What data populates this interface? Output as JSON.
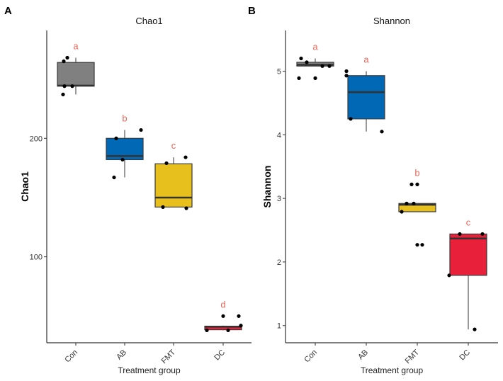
{
  "chart_data": [
    {
      "panel_tag": "A",
      "type": "box",
      "title": "Chao1",
      "xlabel": "Treatment group",
      "ylabel": "Chao1",
      "ylim": [
        27.5,
        291
      ],
      "yticks": [
        100,
        200
      ],
      "grid": false,
      "categories": [
        "Con",
        "AB",
        "FMT",
        "DC"
      ],
      "colors": [
        "#808080",
        "#0068B5",
        "#E8C01E",
        "#E8203A"
      ],
      "boxes": [
        {
          "q1": 244,
          "median": 244.5,
          "q3": 264,
          "whisker_low": 237,
          "whisker_high": 268,
          "points": [
            268,
            265,
            244,
            244,
            237
          ],
          "letter": "a"
        },
        {
          "q1": 182,
          "median": 185,
          "q3": 200,
          "whisker_low": 167,
          "whisker_high": 207,
          "points": [
            207,
            200,
            182,
            167
          ],
          "letter": "b"
        },
        {
          "q1": 142,
          "median": 150,
          "q3": 178.5,
          "whisker_low": 142,
          "whisker_high": 184,
          "points": [
            184,
            179,
            142,
            141
          ],
          "letter": "c"
        },
        {
          "q1": 38.5,
          "median": 41,
          "q3": 41.5,
          "whisker_low": 38,
          "whisker_high": 42,
          "points": [
            50,
            50,
            42,
            38,
            38
          ],
          "letter": "d"
        }
      ]
    },
    {
      "panel_tag": "B",
      "type": "box",
      "title": "Shannon",
      "xlabel": "Treatment group",
      "ylabel": "Shannon",
      "ylim": [
        0.73,
        5.64
      ],
      "yticks": [
        1,
        2,
        3,
        4,
        5
      ],
      "grid": false,
      "categories": [
        "Con",
        "AB",
        "FMT",
        "DC"
      ],
      "colors": [
        "#808080",
        "#0068B5",
        "#E8C01E",
        "#E8203A"
      ],
      "boxes": [
        {
          "q1": 5.08,
          "median": 5.1,
          "q3": 5.14,
          "whisker_low": 5.08,
          "whisker_high": 5.2,
          "points": [
            5.2,
            5.14,
            5.08,
            5.08,
            4.89,
            4.89
          ],
          "letter": "a"
        },
        {
          "q1": 4.25,
          "median": 4.67,
          "q3": 4.93,
          "whisker_low": 4.05,
          "whisker_high": 5.0,
          "points": [
            5.0,
            4.93,
            4.25,
            4.05
          ],
          "letter": "a"
        },
        {
          "q1": 2.79,
          "median": 2.9,
          "q3": 2.92,
          "whisker_low": 2.79,
          "whisker_high": 2.92,
          "points": [
            3.22,
            3.22,
            2.92,
            2.92,
            2.79,
            2.27,
            2.27
          ],
          "letter": "b"
        },
        {
          "q1": 1.79,
          "median": 2.37,
          "q3": 2.44,
          "whisker_low": 0.94,
          "whisker_high": 2.44,
          "points": [
            2.44,
            2.44,
            1.79,
            0.94
          ],
          "letter": "c"
        }
      ]
    }
  ],
  "letter_color": "#E8675A"
}
